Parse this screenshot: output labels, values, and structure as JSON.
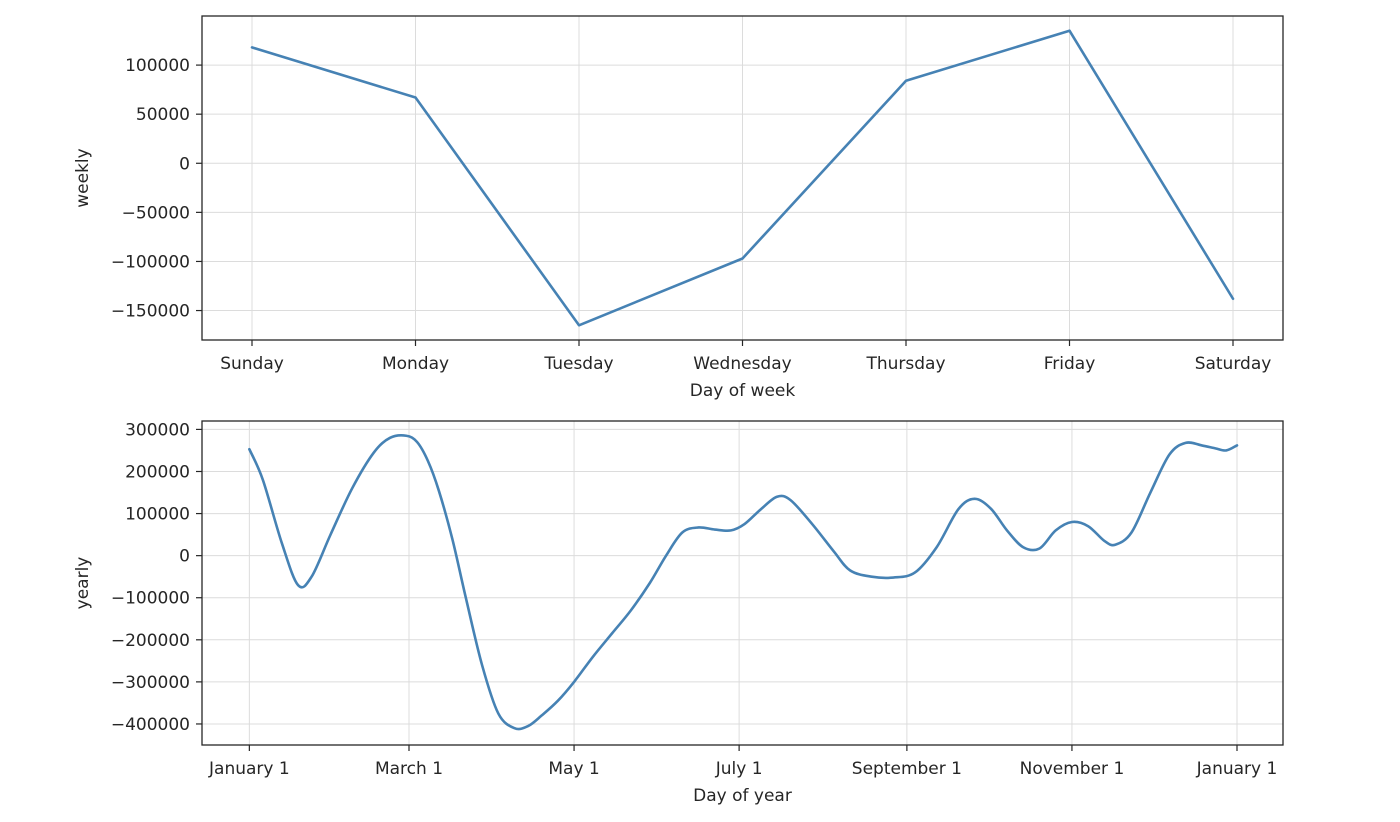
{
  "chart_data": [
    {
      "type": "line",
      "xlabel": "Day of week",
      "ylabel": "weekly",
      "categories": [
        "Sunday",
        "Monday",
        "Tuesday",
        "Wednesday",
        "Thursday",
        "Friday",
        "Saturday"
      ],
      "series": [
        {
          "values": [
            118000,
            67000,
            -165000,
            -97000,
            84000,
            135000,
            -138000
          ]
        }
      ],
      "yticks": [
        {
          "value": 100000,
          "label": "100000"
        },
        {
          "value": 50000,
          "label": "50000"
        },
        {
          "value": 0,
          "label": "0"
        },
        {
          "value": -50000,
          "label": "−50000"
        },
        {
          "value": -100000,
          "label": "−100000"
        },
        {
          "value": -150000,
          "label": "−150000"
        }
      ],
      "ylim": [
        -180000,
        150000
      ],
      "grid": true,
      "line_color": "#4682b4"
    },
    {
      "type": "line",
      "xlabel": "Day of year",
      "ylabel": "yearly",
      "x_ticks": [
        {
          "day": 0,
          "label": "January 1"
        },
        {
          "day": 59,
          "label": "March 1"
        },
        {
          "day": 120,
          "label": "May 1"
        },
        {
          "day": 181,
          "label": "July 1"
        },
        {
          "day": 243,
          "label": "September 1"
        },
        {
          "day": 304,
          "label": "November 1"
        },
        {
          "day": 365,
          "label": "January 1"
        }
      ],
      "xlim": [
        -17.5,
        382
      ],
      "series": [
        {
          "x": [
            0,
            5,
            12,
            18,
            23,
            30,
            38,
            46,
            52,
            58,
            62,
            66,
            70,
            75,
            80,
            86,
            92,
            98,
            103,
            108,
            114,
            120,
            127,
            134,
            141,
            148,
            154,
            160,
            166,
            172,
            178,
            183,
            189,
            195,
            200,
            208,
            216,
            222,
            230,
            238,
            246,
            254,
            262,
            268,
            274,
            280,
            286,
            292,
            298,
            304,
            310,
            316,
            320,
            326,
            333,
            340,
            346,
            352,
            357,
            361,
            365
          ],
          "y": [
            253000,
            180000,
            30000,
            -70000,
            -50000,
            50000,
            160000,
            245000,
            280000,
            285000,
            270000,
            225000,
            155000,
            40000,
            -100000,
            -260000,
            -375000,
            -410000,
            -405000,
            -380000,
            -345000,
            -300000,
            -240000,
            -185000,
            -130000,
            -65000,
            0,
            55000,
            67000,
            62000,
            60000,
            75000,
            110000,
            140000,
            132000,
            75000,
            10000,
            -35000,
            -50000,
            -52000,
            -40000,
            20000,
            110000,
            135000,
            112000,
            60000,
            20000,
            17000,
            60000,
            80000,
            70000,
            35000,
            26000,
            55000,
            150000,
            240000,
            268000,
            262000,
            255000,
            250000,
            262000
          ]
        }
      ],
      "yticks": [
        {
          "value": 300000,
          "label": "300000"
        },
        {
          "value": 200000,
          "label": "200000"
        },
        {
          "value": 100000,
          "label": "100000"
        },
        {
          "value": 0,
          "label": "0"
        },
        {
          "value": -100000,
          "label": "−100000"
        },
        {
          "value": -200000,
          "label": "−200000"
        },
        {
          "value": -300000,
          "label": "−300000"
        },
        {
          "value": -400000,
          "label": "−400000"
        }
      ],
      "ylim": [
        -450000,
        320000
      ],
      "grid": true,
      "line_color": "#4682b4"
    }
  ]
}
